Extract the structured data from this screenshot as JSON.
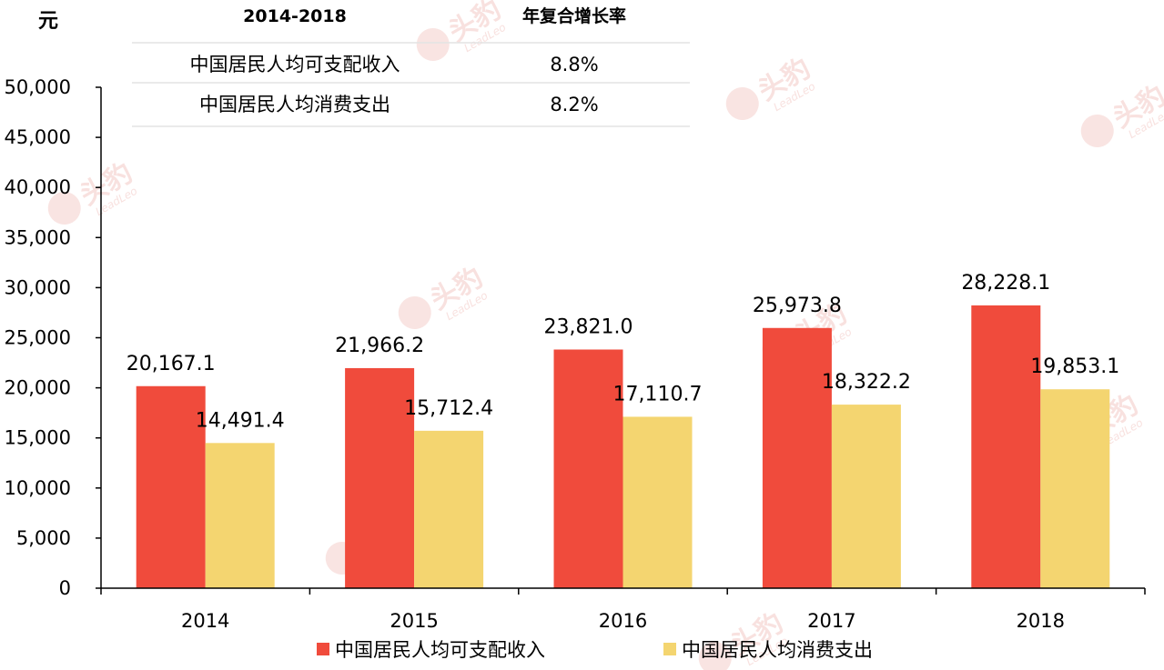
{
  "chart_data": {
    "type": "bar",
    "unit_label": "元",
    "categories": [
      "2014",
      "2015",
      "2016",
      "2017",
      "2018"
    ],
    "series": [
      {
        "name": "中国居民人均可支配收入",
        "color": "#f04b3c",
        "values": [
          20167.1,
          21966.2,
          23821.0,
          25973.8,
          28228.1
        ],
        "labels": [
          "20,167.1",
          "21,966.2",
          "23,821.0",
          "25,973.8",
          "28,228.1"
        ]
      },
      {
        "name": "中国居民人均消费支出",
        "color": "#f4d570",
        "values": [
          14491.4,
          15712.4,
          17110.7,
          18322.2,
          19853.1
        ],
        "labels": [
          "14,491.4",
          "15,712.4",
          "17,110.7",
          "18,322.2",
          "19,853.1"
        ]
      }
    ],
    "ylim": [
      0,
      50000
    ],
    "yticks": [
      "0",
      "5,000",
      "10,000",
      "15,000",
      "20,000",
      "25,000",
      "30,000",
      "35,000",
      "40,000",
      "45,000",
      "50,000"
    ],
    "grid": false,
    "legend_position": "bottom-center"
  },
  "cagr_table": {
    "header_period": "2014-2018",
    "header_metric": "年复合增长率",
    "rows": [
      {
        "label": "中国居民人均可支配收入",
        "value": "8.8%"
      },
      {
        "label": "中国居民人均消费支出",
        "value": "8.2%"
      }
    ]
  },
  "watermark": {
    "text": "头豹",
    "sub": "LeadLeo"
  }
}
